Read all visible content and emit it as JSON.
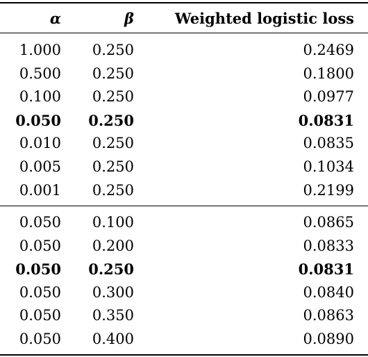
{
  "header": {
    "alpha": "α",
    "beta": "β",
    "loss": "Weighted logistic loss"
  },
  "section1": [
    {
      "alpha": "1.000",
      "beta": "0.250",
      "loss": "0.2469",
      "bold": false
    },
    {
      "alpha": "0.500",
      "beta": "0.250",
      "loss": "0.1800",
      "bold": false
    },
    {
      "alpha": "0.100",
      "beta": "0.250",
      "loss": "0.0977",
      "bold": false
    },
    {
      "alpha": "0.050",
      "beta": "0.250",
      "loss": "0.0831",
      "bold": true
    },
    {
      "alpha": "0.010",
      "beta": "0.250",
      "loss": "0.0835",
      "bold": false
    },
    {
      "alpha": "0.005",
      "beta": "0.250",
      "loss": "0.1034",
      "bold": false
    },
    {
      "alpha": "0.001",
      "beta": "0.250",
      "loss": "0.2199",
      "bold": false
    }
  ],
  "section2": [
    {
      "alpha": "0.050",
      "beta": "0.100",
      "loss": "0.0865",
      "bold": false
    },
    {
      "alpha": "0.050",
      "beta": "0.200",
      "loss": "0.0833",
      "bold": false
    },
    {
      "alpha": "0.050",
      "beta": "0.250",
      "loss": "0.0831",
      "bold": true
    },
    {
      "alpha": "0.050",
      "beta": "0.300",
      "loss": "0.0840",
      "bold": false
    },
    {
      "alpha": "0.050",
      "beta": "0.350",
      "loss": "0.0863",
      "bold": false
    },
    {
      "alpha": "0.050",
      "beta": "0.400",
      "loss": "0.0890",
      "bold": false
    }
  ]
}
